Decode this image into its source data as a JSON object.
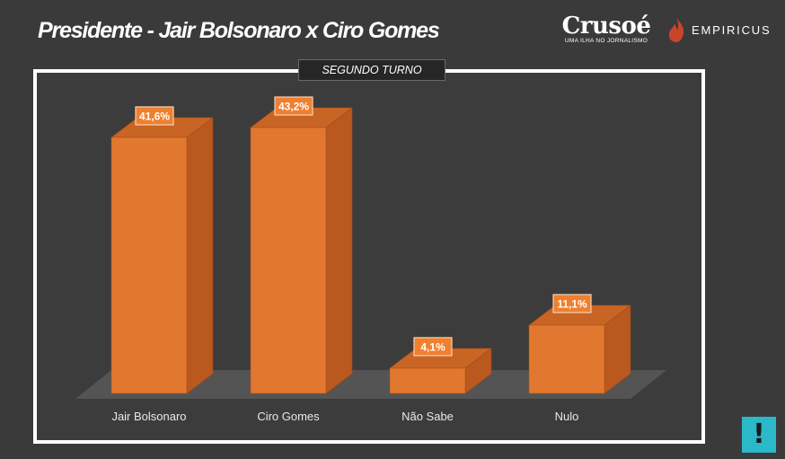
{
  "header": {
    "title": "Presidente -  Jair Bolsonaro x Ciro Gomes",
    "subtitle": "SEGUNDO TURNO"
  },
  "logos": {
    "crusoe_name": "Crusoé",
    "crusoe_tagline": "UMA ILHA NO JORNALISMO",
    "empiricus_name": "EMPIRICUS"
  },
  "alert_button": {
    "label": "!",
    "icon": "exclamation-icon"
  },
  "colors": {
    "bar_front": "#e2782f",
    "bar_side": "#b9591f",
    "bar_top": "#c96524",
    "floor": "#545454",
    "alert": "#2bb8c8"
  },
  "chart_data": {
    "type": "bar",
    "title": "",
    "xlabel": "",
    "ylabel": "",
    "categories": [
      "Jair Bolsonaro",
      "Ciro Gomes",
      "Não Sabe",
      "Nulo"
    ],
    "values": [
      41.6,
      43.2,
      4.1,
      11.1
    ],
    "data_labels": [
      "41,6%",
      "43,2%",
      "4,1%",
      "11,1%"
    ],
    "ylim": [
      0,
      43.2
    ],
    "style": "3d-column",
    "grid": false,
    "legend": "none"
  }
}
